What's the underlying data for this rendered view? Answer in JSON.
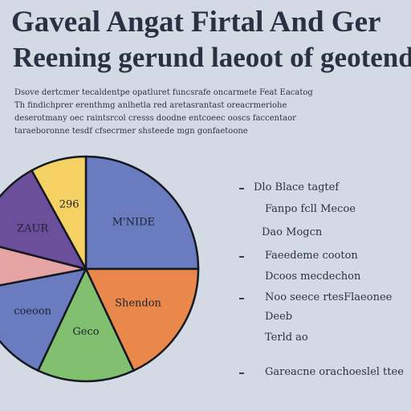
{
  "header": {
    "title": "Gaveal Angat Firtal And Ger",
    "subtitle": "Reening gerund laeoot of geotend"
  },
  "description": {
    "lines": [
      "Dsove dertcmer tecaldentpe opatluret funcsrafe oncarmete Feat Eacatog",
      "Th findichprer erenthmg anlhetla red aretasrantast oreacrmeriohe",
      "deserotmany oec raintsrcol cresss doodne entcoeec ooscs faccentaor",
      "taraeboronne tesdf cfsecrmer shsteede mgn gonfaetoone"
    ]
  },
  "colors": {
    "background": "#d3dae4",
    "slices": [
      "#6a7cbf",
      "#e9884a",
      "#80c06e",
      "#6a7cbf",
      "#e6a3a3",
      "#6b4f9a",
      "#f5d063"
    ]
  },
  "chart_data": {
    "type": "pie",
    "title": "",
    "slices": [
      {
        "label": "M'NIDE",
        "value": 25,
        "color": "#6a7cbf"
      },
      {
        "label": "Shendon",
        "value": 18,
        "color": "#e9884a"
      },
      {
        "label": "Geco",
        "value": 14,
        "color": "#80c06e"
      },
      {
        "label": "coeoon",
        "value": 15,
        "color": "#6a7cbf"
      },
      {
        "label": "",
        "value": 7,
        "color": "#e6a3a3"
      },
      {
        "label": "ZAUR",
        "value": 13,
        "color": "#6b4f9a"
      },
      {
        "label": "296",
        "value": 8,
        "color": "#f5d063"
      }
    ]
  },
  "legend": {
    "items": [
      {
        "bullet": true,
        "text": "Dlo Blace tagtef"
      },
      {
        "bullet": false,
        "text": "Fanpo fcll Mecoe"
      },
      {
        "bullet": false,
        "text": "Dao Mogcn"
      },
      {
        "bullet": true,
        "text": "Faeedeme cooton"
      },
      {
        "bullet": false,
        "text": "Dcoos mecdechon"
      },
      {
        "bullet": true,
        "text": "Noo seece rtesFlaeonee"
      },
      {
        "bullet": false,
        "text": "Deeb"
      },
      {
        "bullet": false,
        "text": "Terld ao"
      },
      {
        "bullet": true,
        "text": "Gareacne orachoeslel ttee"
      }
    ]
  }
}
